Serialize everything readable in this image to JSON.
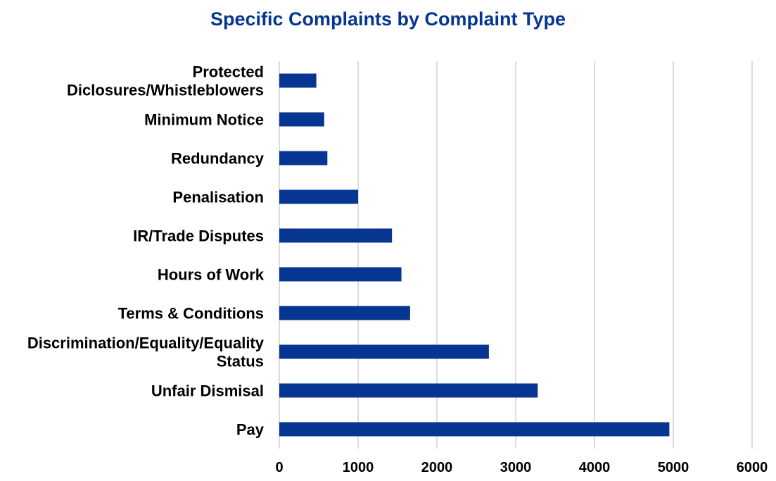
{
  "chart_data": {
    "type": "bar",
    "orientation": "horizontal",
    "title": "Specific Complaints by Complaint Type",
    "xlabel": "",
    "ylabel": "",
    "categories": [
      "Protected Diclosures/Whistleblowers",
      "Minimum Notice",
      "Redundancy",
      "Penalisation",
      "IR/Trade Disputes",
      "Hours of Work",
      "Terms & Conditions",
      "Discrimination/Equality/Equality Status",
      "Unfair Dismisal",
      "Pay"
    ],
    "category_label_lines": [
      [
        "Protected",
        "Diclosures/Whistleblowers"
      ],
      [
        "Minimum Notice"
      ],
      [
        "Redundancy"
      ],
      [
        "Penalisation"
      ],
      [
        "IR/Trade Disputes"
      ],
      [
        "Hours of Work"
      ],
      [
        "Terms & Conditions"
      ],
      [
        "Discrimination/Equality/Equality",
        "Status"
      ],
      [
        "Unfair Dismisal"
      ],
      [
        "Pay"
      ]
    ],
    "values": [
      470,
      570,
      610,
      1000,
      1430,
      1550,
      1660,
      2660,
      3280,
      4950
    ],
    "xlim": [
      0,
      6000
    ],
    "x_ticks": [
      "0",
      "1000",
      "2000",
      "3000",
      "4000",
      "5000",
      "6000"
    ],
    "grid": "vertical",
    "legend": "none",
    "colors": {
      "bar": "#063691",
      "title": "#063691",
      "grid": "#d0d0d0"
    }
  }
}
